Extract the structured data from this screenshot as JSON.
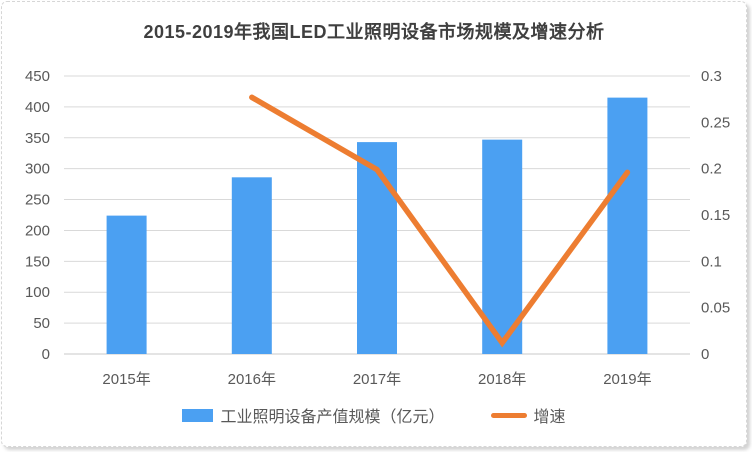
{
  "chart_data": {
    "type": "combo",
    "title": "2015-2019年我国LED工业照明设备市场规模及增速分析",
    "categories": [
      "2015年",
      "2016年",
      "2017年",
      "2018年",
      "2019年"
    ],
    "series": [
      {
        "name": "工业照明设备产值规模（亿元）",
        "type": "bar",
        "axis": "left",
        "values": [
          224,
          286,
          343,
          347,
          415
        ],
        "color": "#4BA0F2"
      },
      {
        "name": "增速",
        "type": "line",
        "axis": "right",
        "values": [
          null,
          0.277,
          0.199,
          0.012,
          0.196
        ],
        "color": "#ED7D31"
      }
    ],
    "left_axis": {
      "min": 0,
      "max": 450,
      "step": 50
    },
    "right_axis": {
      "min": 0,
      "max": 0.3,
      "step": 0.05
    },
    "grid": true,
    "legend_position": "bottom",
    "colors": {
      "grid": "#d9d9d9",
      "baseline": "#c9c9c9",
      "tick_text": "#595959",
      "title_text": "#3f3f3f"
    }
  }
}
